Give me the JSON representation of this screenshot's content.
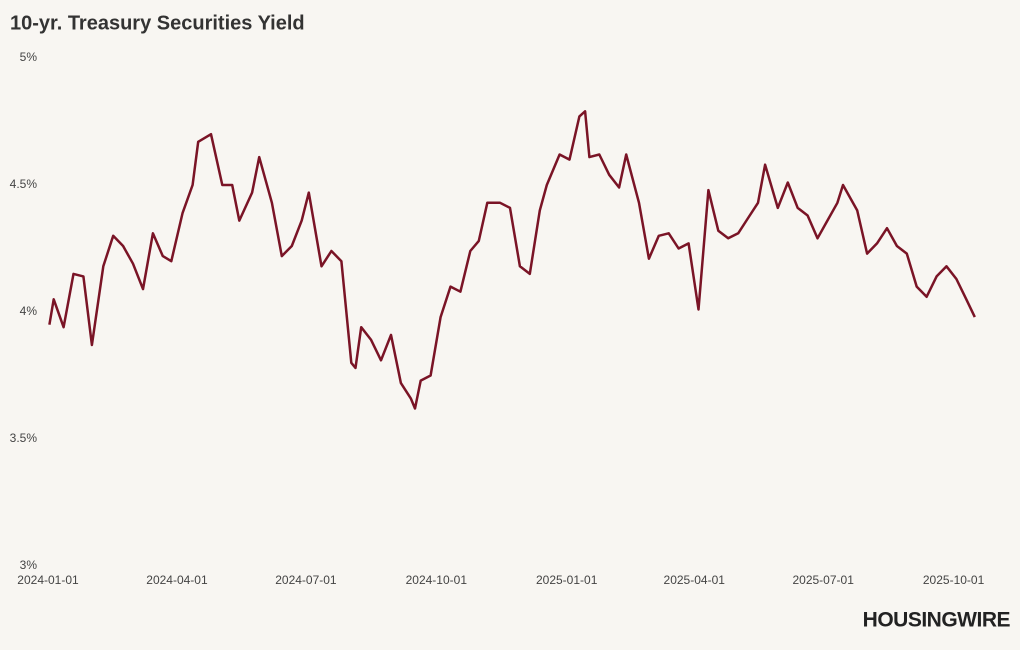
{
  "chart_data": {
    "type": "line",
    "title": "10-yr. Treasury Securities Yield",
    "logo": "HOUSINGWIRE",
    "x": [
      "2024-01-02",
      "2024-01-05",
      "2024-01-12",
      "2024-01-19",
      "2024-01-26",
      "2024-02-01",
      "2024-02-09",
      "2024-02-16",
      "2024-02-23",
      "2024-03-01",
      "2024-03-08",
      "2024-03-15",
      "2024-03-22",
      "2024-03-28",
      "2024-04-05",
      "2024-04-12",
      "2024-04-16",
      "2024-04-25",
      "2024-05-03",
      "2024-05-10",
      "2024-05-15",
      "2024-05-24",
      "2024-05-29",
      "2024-06-07",
      "2024-06-14",
      "2024-06-21",
      "2024-06-28",
      "2024-07-03",
      "2024-07-12",
      "2024-07-19",
      "2024-07-26",
      "2024-08-02",
      "2024-08-05",
      "2024-08-09",
      "2024-08-16",
      "2024-08-23",
      "2024-08-30",
      "2024-09-06",
      "2024-09-13",
      "2024-09-16",
      "2024-09-20",
      "2024-09-27",
      "2024-10-04",
      "2024-10-11",
      "2024-10-18",
      "2024-10-25",
      "2024-10-31",
      "2024-11-06",
      "2024-11-15",
      "2024-11-22",
      "2024-11-29",
      "2024-12-06",
      "2024-12-13",
      "2024-12-18",
      "2024-12-27",
      "2025-01-03",
      "2025-01-10",
      "2025-01-14",
      "2025-01-17",
      "2025-01-24",
      "2025-01-31",
      "2025-02-07",
      "2025-02-12",
      "2025-02-21",
      "2025-02-28",
      "2025-03-07",
      "2025-03-14",
      "2025-03-21",
      "2025-03-28",
      "2025-04-04",
      "2025-04-11",
      "2025-04-18",
      "2025-04-25",
      "2025-05-02",
      "2025-05-09",
      "2025-05-16",
      "2025-05-21",
      "2025-05-30",
      "2025-06-06",
      "2025-06-13",
      "2025-06-20",
      "2025-06-27",
      "2025-07-03",
      "2025-07-11",
      "2025-07-15",
      "2025-07-25",
      "2025-08-01",
      "2025-08-08",
      "2025-08-15",
      "2025-08-22",
      "2025-08-29",
      "2025-09-05",
      "2025-09-12",
      "2025-09-19",
      "2025-09-26",
      "2025-10-03",
      "2025-10-10",
      "2025-10-16"
    ],
    "series": [
      {
        "name": "10-yr. Treasury Securities Yield",
        "color": "#7a1426",
        "values": [
          3.95,
          4.05,
          3.94,
          4.15,
          4.14,
          3.87,
          4.18,
          4.3,
          4.26,
          4.19,
          4.09,
          4.31,
          4.22,
          4.2,
          4.39,
          4.5,
          4.67,
          4.7,
          4.5,
          4.5,
          4.36,
          4.47,
          4.61,
          4.43,
          4.22,
          4.26,
          4.36,
          4.47,
          4.18,
          4.24,
          4.2,
          3.8,
          3.78,
          3.94,
          3.89,
          3.81,
          3.91,
          3.72,
          3.66,
          3.62,
          3.73,
          3.75,
          3.98,
          4.1,
          4.08,
          4.24,
          4.28,
          4.43,
          4.43,
          4.41,
          4.18,
          4.15,
          4.4,
          4.5,
          4.62,
          4.6,
          4.77,
          4.79,
          4.61,
          4.62,
          4.54,
          4.49,
          4.62,
          4.43,
          4.21,
          4.3,
          4.31,
          4.25,
          4.27,
          4.01,
          4.48,
          4.32,
          4.29,
          4.31,
          4.37,
          4.43,
          4.58,
          4.41,
          4.51,
          4.41,
          4.38,
          4.29,
          4.35,
          4.43,
          4.5,
          4.4,
          4.23,
          4.27,
          4.33,
          4.26,
          4.23,
          4.1,
          4.06,
          4.14,
          4.18,
          4.13,
          4.05,
          3.98
        ]
      }
    ],
    "xlim": [
      "2024-01-01",
      "2025-10-20"
    ],
    "xticks": [
      "2024-01-01",
      "2024-04-01",
      "2024-07-01",
      "2024-10-01",
      "2025-01-01",
      "2025-04-01",
      "2025-07-01",
      "2025-10-01"
    ],
    "ylim": [
      3,
      5
    ],
    "yticks": [
      {
        "value": 3,
        "label": "3%"
      },
      {
        "value": 3.5,
        "label": "3.5%"
      },
      {
        "value": 4,
        "label": "4%"
      },
      {
        "value": 4.5,
        "label": "4.5%"
      },
      {
        "value": 5,
        "label": "5%"
      }
    ],
    "grid": false
  }
}
